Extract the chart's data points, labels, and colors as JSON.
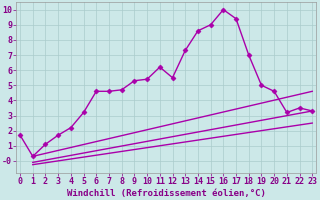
{
  "xlabel": "Windchill (Refroidissement éolien,°C)",
  "x": [
    0,
    1,
    2,
    3,
    4,
    5,
    6,
    7,
    8,
    9,
    10,
    11,
    12,
    13,
    14,
    15,
    16,
    17,
    18,
    19,
    20,
    21,
    22,
    23
  ],
  "line1": [
    1.7,
    0.3,
    1.1,
    1.7,
    2.2,
    3.2,
    4.6,
    4.6,
    4.7,
    5.3,
    5.4,
    6.2,
    5.5,
    7.3,
    8.6,
    9.0,
    10.0,
    9.4,
    7.0,
    5.0,
    4.6,
    3.2,
    3.5,
    3.3
  ],
  "line3_x": [
    1,
    23
  ],
  "line3_y": [
    0.3,
    4.6
  ],
  "line4_x": [
    1,
    23
  ],
  "line4_y": [
    -0.1,
    3.3
  ],
  "line5_x": [
    1,
    23
  ],
  "line5_y": [
    -0.25,
    2.5
  ],
  "bg_color": "#cce8e8",
  "grid_color": "#aacccc",
  "line_color": "#aa00aa",
  "ylim": [
    -0.8,
    10.5
  ],
  "xlim": [
    -0.3,
    23.3
  ],
  "yticks": [
    0,
    1,
    2,
    3,
    4,
    5,
    6,
    7,
    8,
    9,
    10
  ],
  "xticks": [
    0,
    1,
    2,
    3,
    4,
    5,
    6,
    7,
    8,
    9,
    10,
    11,
    12,
    13,
    14,
    15,
    16,
    17,
    18,
    19,
    20,
    21,
    22,
    23
  ],
  "marker": "D",
  "markersize": 2.5,
  "linewidth": 1.0,
  "font_color": "#880088",
  "axis_label_fontsize": 6.5,
  "tick_fontsize": 6
}
